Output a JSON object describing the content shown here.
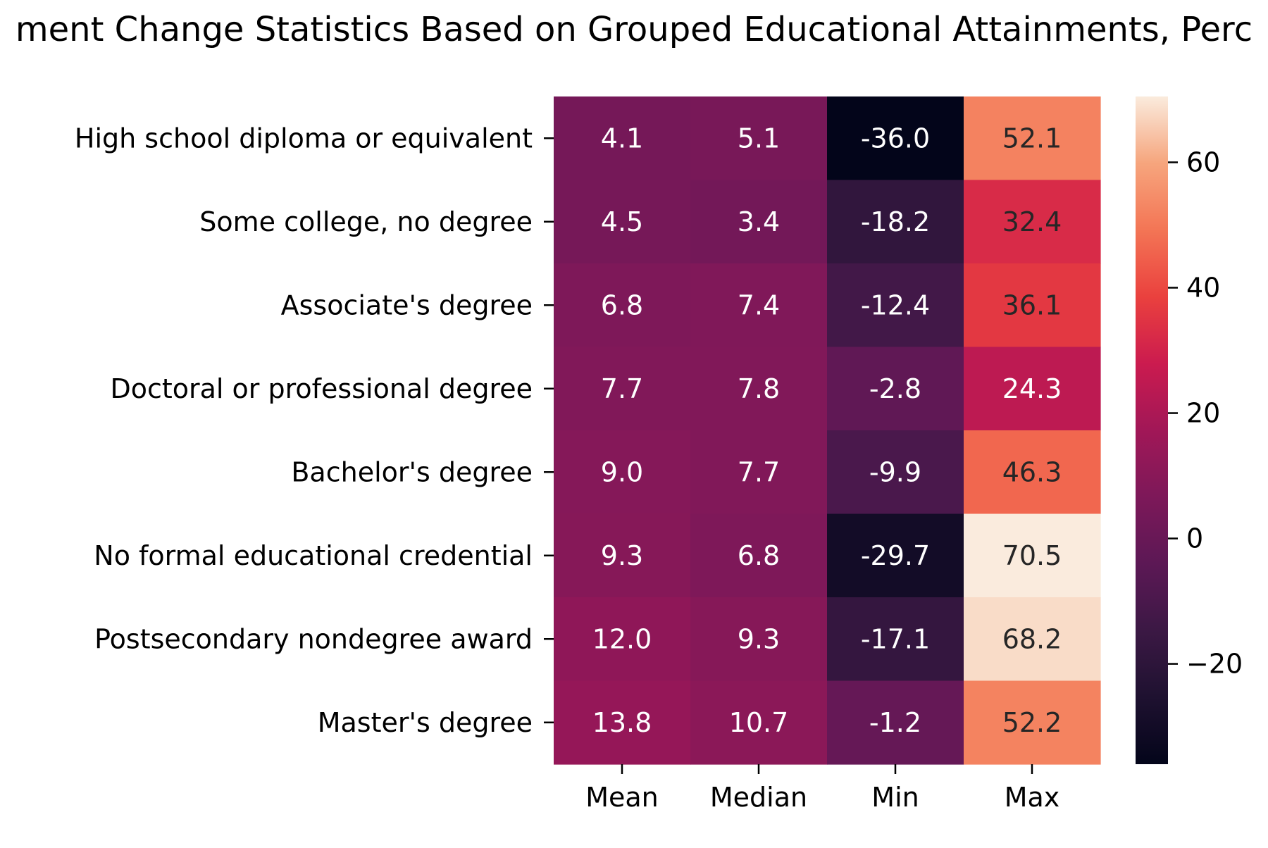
{
  "chart_data": {
    "type": "heatmap",
    "title": "ment Change Statistics Based on Grouped Educational Attainments, Perc",
    "columns": [
      "Mean",
      "Median",
      "Min",
      "Max"
    ],
    "rows": [
      "High school diploma or equivalent",
      "Some college, no degree",
      "Associate's degree",
      "Doctoral or professional degree",
      "Bachelor's degree",
      "No formal educational credential",
      "Postsecondary nondegree award",
      "Master's degree"
    ],
    "values": [
      [
        4.1,
        5.1,
        -36.0,
        52.1
      ],
      [
        4.5,
        3.4,
        -18.2,
        32.4
      ],
      [
        6.8,
        7.4,
        -12.4,
        36.1
      ],
      [
        7.7,
        7.8,
        -2.8,
        24.3
      ],
      [
        9.0,
        7.7,
        -9.9,
        46.3
      ],
      [
        9.3,
        6.8,
        -29.7,
        70.5
      ],
      [
        12.0,
        9.3,
        -17.1,
        68.2
      ],
      [
        13.8,
        10.7,
        -1.2,
        52.2
      ]
    ],
    "value_labels": [
      [
        "4.1",
        "5.1",
        "-36.0",
        "52.1"
      ],
      [
        "4.5",
        "3.4",
        "-18.2",
        "32.4"
      ],
      [
        "6.8",
        "7.4",
        "-12.4",
        "36.1"
      ],
      [
        "7.7",
        "7.8",
        "-2.8",
        "24.3"
      ],
      [
        "9.0",
        "7.7",
        "-9.9",
        "46.3"
      ],
      [
        "9.3",
        "6.8",
        "-29.7",
        "70.5"
      ],
      [
        "12.0",
        "9.3",
        "-17.1",
        "68.2"
      ],
      [
        "13.8",
        "10.7",
        "-1.2",
        "52.2"
      ]
    ],
    "colormap": "rocket",
    "vmin": -36.0,
    "vmax": 70.5,
    "colorbar": {
      "ticks": [
        -20,
        0,
        20,
        40,
        60
      ],
      "tick_labels": [
        "−20",
        "0",
        "20",
        "40",
        "60"
      ],
      "placement": "right"
    }
  }
}
